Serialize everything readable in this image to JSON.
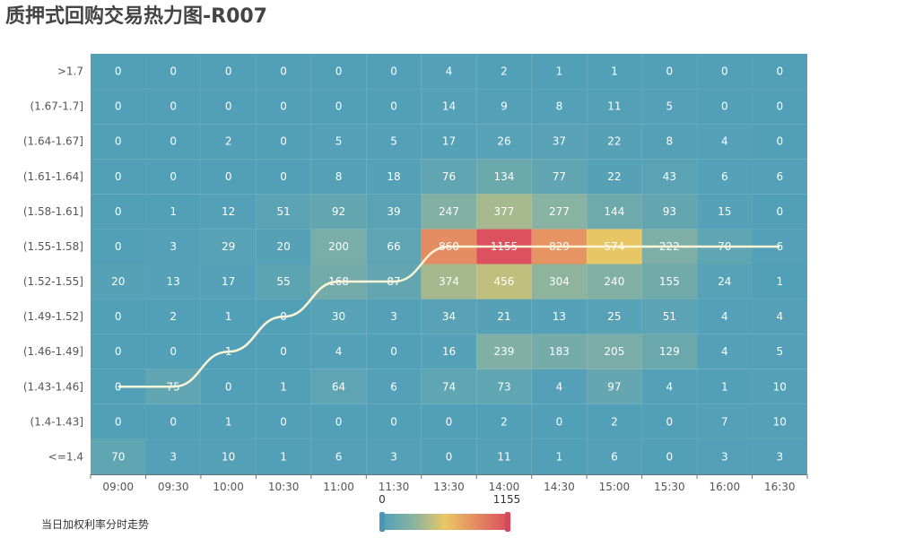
{
  "title": "质押式回购交易热力图-R007",
  "legend_label": "当日加权利率分时走势",
  "chart_data": {
    "type": "heatmap",
    "x_categories": [
      "09:00",
      "09:30",
      "10:00",
      "10:30",
      "11:00",
      "11:30",
      "13:30",
      "14:00",
      "14:30",
      "15:00",
      "15:30",
      "16:00",
      "16:30"
    ],
    "y_categories": [
      "<=1.4",
      "(1.4-1.43]",
      "(1.43-1.46]",
      "(1.46-1.49]",
      "(1.49-1.52]",
      "(1.52-1.55]",
      "(1.55-1.58]",
      "(1.58-1.61]",
      "(1.61-1.64]",
      "(1.64-1.67]",
      "(1.67-1.7]",
      ">1.7"
    ],
    "values": [
      [
        70,
        3,
        10,
        1,
        6,
        3,
        0,
        11,
        1,
        6,
        0,
        3,
        3
      ],
      [
        0,
        0,
        1,
        0,
        0,
        0,
        0,
        2,
        0,
        2,
        0,
        7,
        10
      ],
      [
        0,
        75,
        0,
        1,
        64,
        6,
        74,
        73,
        4,
        97,
        4,
        1,
        10
      ],
      [
        0,
        0,
        1,
        0,
        4,
        0,
        16,
        239,
        183,
        205,
        129,
        4,
        5
      ],
      [
        0,
        2,
        1,
        0,
        30,
        3,
        34,
        21,
        13,
        25,
        51,
        4,
        4
      ],
      [
        20,
        13,
        17,
        55,
        168,
        87,
        374,
        456,
        304,
        240,
        155,
        24,
        1
      ],
      [
        0,
        3,
        29,
        20,
        200,
        66,
        860,
        1155,
        829,
        574,
        222,
        70,
        6
      ],
      [
        0,
        1,
        12,
        51,
        92,
        39,
        247,
        377,
        277,
        144,
        93,
        15,
        0
      ],
      [
        0,
        0,
        0,
        0,
        8,
        18,
        76,
        134,
        77,
        22,
        43,
        6,
        6
      ],
      [
        0,
        0,
        2,
        0,
        5,
        5,
        17,
        26,
        37,
        22,
        8,
        4,
        0
      ],
      [
        0,
        0,
        0,
        0,
        0,
        0,
        14,
        9,
        8,
        11,
        5,
        0,
        0
      ],
      [
        0,
        0,
        0,
        0,
        0,
        0,
        4,
        2,
        1,
        1,
        0,
        0,
        0
      ]
    ],
    "visual_map": {
      "min": 0,
      "max": 1155,
      "min_label": "0",
      "max_label": "1155",
      "colors": [
        "#52a0b8",
        "#8ab3a0",
        "#e8c764",
        "#e58c62",
        "#dc5060"
      ]
    },
    "trend_line": {
      "x": [
        "09:00",
        "09:30",
        "10:00",
        "10:30",
        "11:00",
        "11:30",
        "13:30",
        "14:00",
        "14:30",
        "15:00",
        "15:30",
        "16:00",
        "16:30"
      ],
      "y_bucket": [
        "(1.43-1.46]",
        "(1.43-1.46]",
        "(1.46-1.49]",
        "(1.49-1.52]",
        "(1.52-1.55]",
        "(1.52-1.55]",
        "(1.55-1.58]",
        "(1.55-1.58]",
        "(1.55-1.58]",
        "(1.55-1.58]",
        "(1.55-1.58]",
        "(1.55-1.58]",
        "(1.55-1.58]"
      ],
      "color": "#fdf5d8"
    }
  }
}
